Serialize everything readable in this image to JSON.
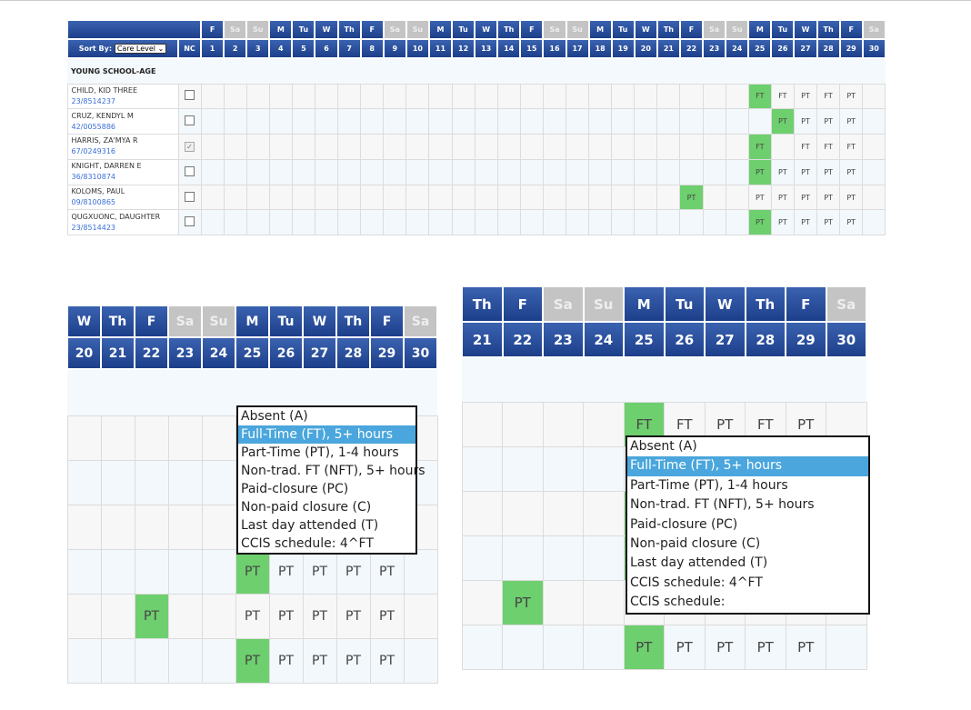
{
  "colors": {
    "header_blue": "#1d3f8a",
    "weekend_gray": "#c4c4c4",
    "present_green": "#6ecf6e",
    "selected_option": "#4aa6dc"
  },
  "header": {
    "sort_label": "Sort By:",
    "sort_value": "Care Level",
    "nc_label": "NC"
  },
  "days": [
    {
      "dow": "F",
      "num": "1"
    },
    {
      "dow": "Sa",
      "num": "2",
      "weekend": true
    },
    {
      "dow": "Su",
      "num": "3",
      "weekend": true
    },
    {
      "dow": "M",
      "num": "4"
    },
    {
      "dow": "Tu",
      "num": "5"
    },
    {
      "dow": "W",
      "num": "6"
    },
    {
      "dow": "Th",
      "num": "7"
    },
    {
      "dow": "F",
      "num": "8"
    },
    {
      "dow": "Sa",
      "num": "9",
      "weekend": true
    },
    {
      "dow": "Su",
      "num": "10",
      "weekend": true
    },
    {
      "dow": "M",
      "num": "11"
    },
    {
      "dow": "Tu",
      "num": "12"
    },
    {
      "dow": "W",
      "num": "13"
    },
    {
      "dow": "Th",
      "num": "14"
    },
    {
      "dow": "F",
      "num": "15"
    },
    {
      "dow": "Sa",
      "num": "16",
      "weekend": true
    },
    {
      "dow": "Su",
      "num": "17",
      "weekend": true
    },
    {
      "dow": "M",
      "num": "18"
    },
    {
      "dow": "Tu",
      "num": "19"
    },
    {
      "dow": "W",
      "num": "20"
    },
    {
      "dow": "Th",
      "num": "21"
    },
    {
      "dow": "F",
      "num": "22"
    },
    {
      "dow": "Sa",
      "num": "23",
      "weekend": true
    },
    {
      "dow": "Su",
      "num": "24",
      "weekend": true
    },
    {
      "dow": "M",
      "num": "25"
    },
    {
      "dow": "Tu",
      "num": "26"
    },
    {
      "dow": "W",
      "num": "27"
    },
    {
      "dow": "Th",
      "num": "28"
    },
    {
      "dow": "F",
      "num": "29"
    },
    {
      "dow": "Sa",
      "num": "30",
      "weekend": true
    }
  ],
  "group": "YOUNG SCHOOL-AGE",
  "children": [
    {
      "name": "CHILD, KID THREE",
      "id": "23/8514237",
      "nc": false,
      "cells": {
        "25": "FT",
        "26": "FT",
        "27": "PT",
        "28": "FT",
        "29": "PT"
      },
      "green": [
        "25"
      ]
    },
    {
      "name": "CRUZ, KENDYL M",
      "id": "42/0055886",
      "nc": false,
      "cells": {
        "26": "PT",
        "27": "PT",
        "28": "PT",
        "29": "PT"
      },
      "green": [
        "26"
      ]
    },
    {
      "name": "HARRIS, ZA'MYA R",
      "id": "67/0249316",
      "nc": true,
      "cells": {
        "25": "FT",
        "27": "FT",
        "28": "FT",
        "29": "FT"
      },
      "green": [
        "25"
      ]
    },
    {
      "name": "KNIGHT, DARREN E",
      "id": "36/8310874",
      "nc": false,
      "cells": {
        "25": "PT",
        "26": "PT",
        "27": "PT",
        "28": "PT",
        "29": "PT"
      },
      "green": [
        "25"
      ]
    },
    {
      "name": "KOLOMS, PAUL",
      "id": "09/8100865",
      "nc": false,
      "cells": {
        "22": "PT",
        "25": "PT",
        "26": "PT",
        "27": "PT",
        "28": "PT",
        "29": "PT"
      },
      "green": [
        "22"
      ]
    },
    {
      "name": "QUGXUONC, DAUGHTER",
      "id": "23/8514423",
      "nc": false,
      "cells": {
        "25": "PT",
        "26": "PT",
        "27": "PT",
        "28": "PT",
        "29": "PT"
      },
      "green": [
        "25"
      ]
    }
  ],
  "dropdown_left": {
    "options": [
      "Absent (A)",
      "Full-Time (FT), 5+ hours",
      "Part-Time (PT), 1-4 hours",
      "Non-trad. FT (NFT), 5+ hours",
      "Paid-closure (PC)",
      "Non-paid closure (C)",
      "Last day attended (T)",
      "CCIS schedule: 4^FT"
    ],
    "selected": 1
  },
  "dropdown_right": {
    "options": [
      "Absent (A)",
      "Full-Time (FT), 5+ hours",
      "Part-Time (PT), 1-4 hours",
      "Non-trad. FT (NFT), 5+ hours",
      "Paid-closure (PC)",
      "Non-paid closure (C)",
      "Last day attended (T)",
      "CCIS schedule: 4^FT",
      "CCIS schedule:"
    ],
    "selected": 1
  }
}
